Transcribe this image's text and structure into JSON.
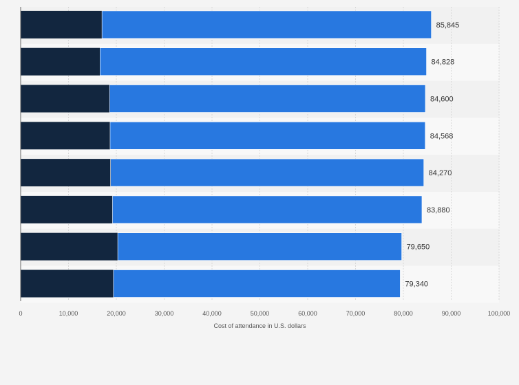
{
  "chart_data": {
    "type": "bar",
    "orientation": "horizontal",
    "stacked": true,
    "categories": [
      "",
      "",
      "",
      "",
      "",
      "",
      "",
      ""
    ],
    "series": [
      {
        "values": [
          17000,
          16600,
          18600,
          18700,
          18800,
          19200,
          20300,
          19400
        ],
        "color": "#12263f"
      },
      {
        "values": [
          68845,
          68228,
          66000,
          65868,
          65470,
          64680,
          59350,
          59940
        ],
        "color": "#2878e0"
      }
    ],
    "totals": [
      85845,
      84828,
      84600,
      84568,
      84270,
      83880,
      79650,
      79340
    ],
    "total_labels": [
      "85,845",
      "84,828",
      "84,600",
      "84,568",
      "84,270",
      "83,880",
      "79,650",
      "79,340"
    ],
    "xlabel": "Cost of attendance in U.S. dollars",
    "ylabel": "",
    "xlim": [
      0,
      100000
    ],
    "xticks": [
      0,
      10000,
      20000,
      30000,
      40000,
      50000,
      60000,
      70000,
      80000,
      90000,
      100000
    ],
    "xtick_labels": [
      "0",
      "10,000",
      "20,000",
      "30,000",
      "40,000",
      "50,000",
      "60,000",
      "70,000",
      "80,000",
      "90,000",
      "100,000"
    ],
    "grid": true,
    "legend": "none"
  }
}
